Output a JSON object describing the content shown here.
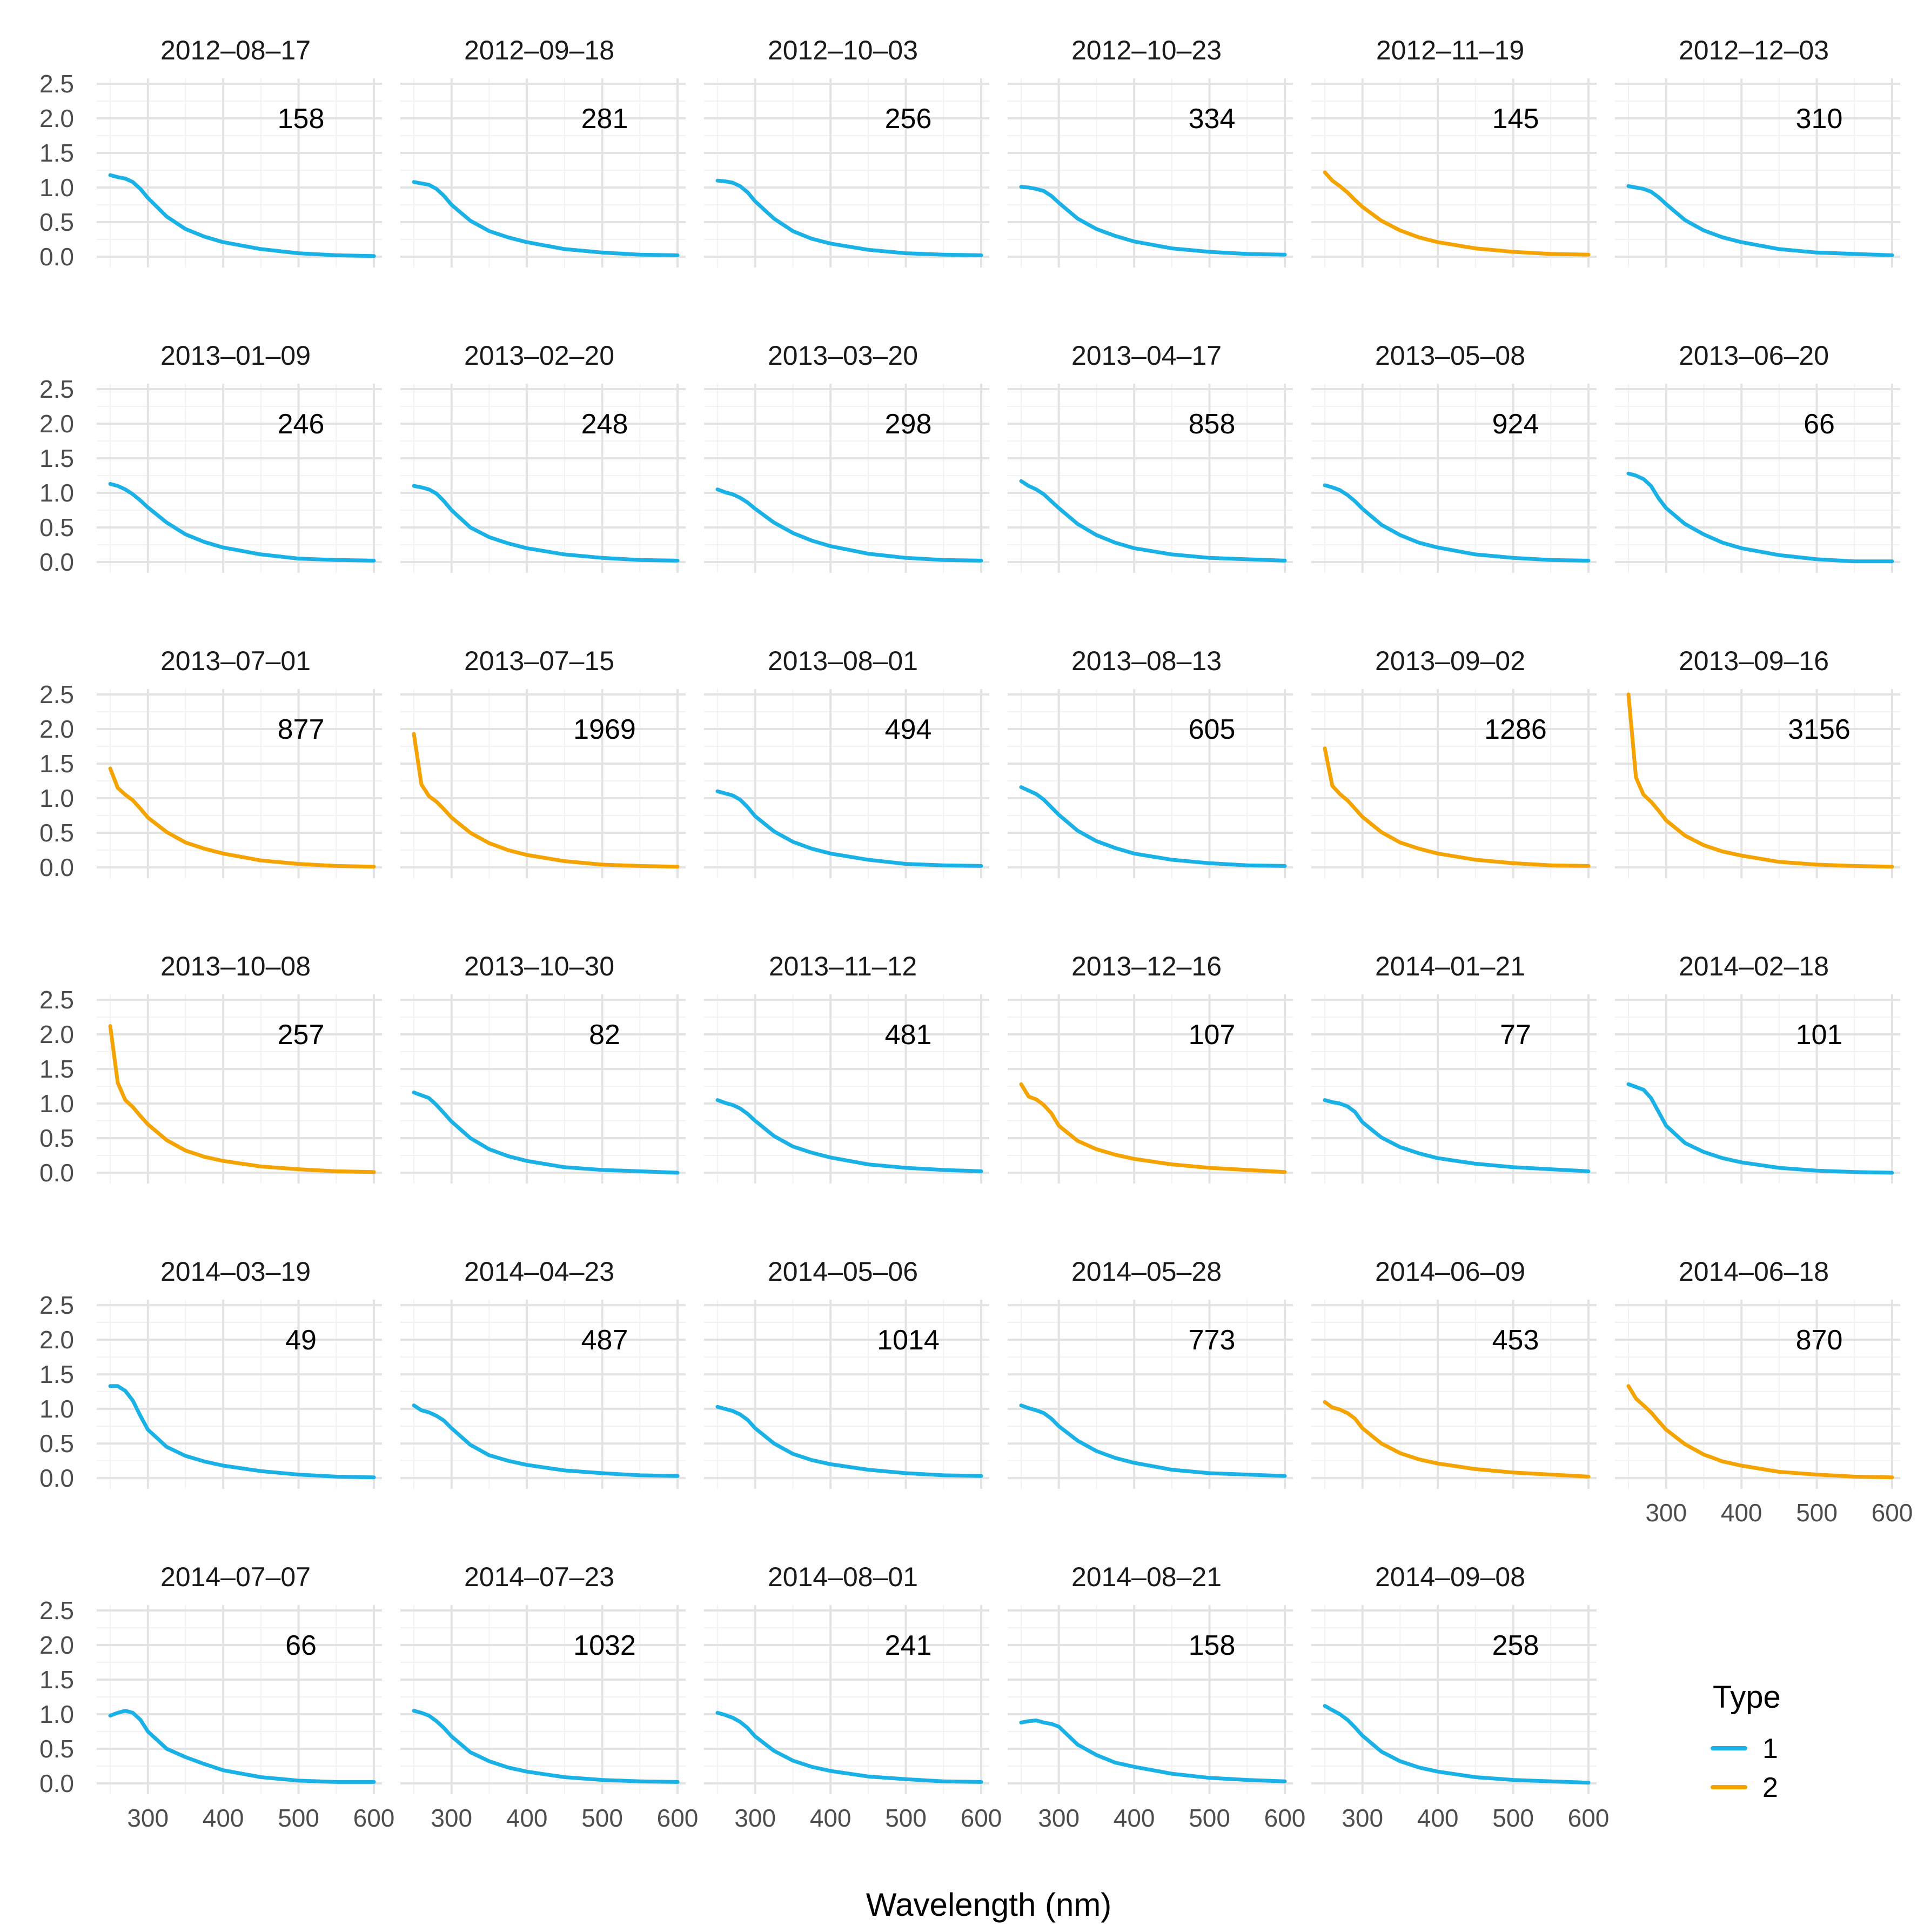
{
  "chart_data": {
    "type": "line",
    "title": "",
    "xlabel": "Wavelength (nm)",
    "ylabel": "",
    "xlim": [
      250,
      600
    ],
    "ylim": [
      0,
      2.5
    ],
    "x_ticks": [
      300,
      400,
      500,
      600
    ],
    "y_ticks": [
      0.0,
      0.5,
      1.0,
      1.5,
      2.0,
      2.5
    ],
    "y_tick_labels": [
      "0.0",
      "0.5",
      "1.0",
      "1.5",
      "2.0",
      "2.5"
    ],
    "x_tick_labels": [
      "300",
      "400",
      "500",
      "600"
    ],
    "grid": true,
    "legend": {
      "title": "Type",
      "position": "right",
      "entries": [
        {
          "label": "1",
          "color": "#1AB2E6"
        },
        {
          "label": "2",
          "color": "#F5A300"
        }
      ]
    },
    "curve_x": [
      250,
      260,
      270,
      280,
      290,
      300,
      325,
      350,
      375,
      400,
      450,
      500,
      550,
      600
    ],
    "panels": [
      {
        "date": "2012–08–17",
        "label": "158",
        "type": "1",
        "values": [
          1.18,
          1.15,
          1.13,
          1.08,
          0.98,
          0.85,
          0.58,
          0.4,
          0.29,
          0.21,
          0.11,
          0.05,
          0.02,
          0.01
        ]
      },
      {
        "date": "2012–09–18",
        "label": "281",
        "type": "1",
        "values": [
          1.08,
          1.06,
          1.04,
          0.98,
          0.88,
          0.75,
          0.52,
          0.37,
          0.28,
          0.21,
          0.11,
          0.06,
          0.03,
          0.02
        ]
      },
      {
        "date": "2012–10–03",
        "label": "256",
        "type": "1",
        "values": [
          1.1,
          1.09,
          1.07,
          1.02,
          0.93,
          0.8,
          0.55,
          0.37,
          0.26,
          0.19,
          0.1,
          0.05,
          0.03,
          0.02
        ]
      },
      {
        "date": "2012–10–23",
        "label": "334",
        "type": "1",
        "values": [
          1.01,
          1.0,
          0.98,
          0.95,
          0.88,
          0.78,
          0.55,
          0.4,
          0.3,
          0.22,
          0.12,
          0.07,
          0.04,
          0.03
        ]
      },
      {
        "date": "2012–11–19",
        "label": "145",
        "type": "2",
        "values": [
          1.22,
          1.1,
          1.02,
          0.93,
          0.82,
          0.72,
          0.52,
          0.38,
          0.28,
          0.21,
          0.12,
          0.07,
          0.04,
          0.03
        ]
      },
      {
        "date": "2012–12–03",
        "label": "310",
        "type": "1",
        "values": [
          1.02,
          1.0,
          0.98,
          0.94,
          0.86,
          0.76,
          0.53,
          0.38,
          0.28,
          0.21,
          0.11,
          0.06,
          0.04,
          0.02
        ]
      },
      {
        "date": "2013–01–09",
        "label": "246",
        "type": "1",
        "values": [
          1.13,
          1.1,
          1.05,
          0.98,
          0.89,
          0.79,
          0.57,
          0.4,
          0.29,
          0.21,
          0.11,
          0.05,
          0.03,
          0.02
        ]
      },
      {
        "date": "2013–02–20",
        "label": "248",
        "type": "1",
        "values": [
          1.1,
          1.08,
          1.05,
          0.99,
          0.88,
          0.75,
          0.5,
          0.36,
          0.27,
          0.2,
          0.11,
          0.06,
          0.03,
          0.02
        ]
      },
      {
        "date": "2013–03–20",
        "label": "298",
        "type": "1",
        "values": [
          1.05,
          1.01,
          0.98,
          0.93,
          0.86,
          0.77,
          0.57,
          0.42,
          0.31,
          0.23,
          0.12,
          0.06,
          0.03,
          0.02
        ]
      },
      {
        "date": "2013–04–17",
        "label": "858",
        "type": "1",
        "values": [
          1.17,
          1.1,
          1.05,
          0.98,
          0.88,
          0.78,
          0.55,
          0.39,
          0.28,
          0.2,
          0.11,
          0.06,
          0.04,
          0.02
        ]
      },
      {
        "date": "2013–05–08",
        "label": "924",
        "type": "1",
        "values": [
          1.11,
          1.08,
          1.04,
          0.97,
          0.88,
          0.77,
          0.54,
          0.39,
          0.28,
          0.21,
          0.11,
          0.06,
          0.03,
          0.02
        ]
      },
      {
        "date": "2013–06–20",
        "label": "66",
        "type": "1",
        "values": [
          1.28,
          1.25,
          1.2,
          1.1,
          0.92,
          0.78,
          0.55,
          0.4,
          0.28,
          0.2,
          0.1,
          0.04,
          0.01,
          0.01
        ]
      },
      {
        "date": "2013–07–01",
        "label": "877",
        "type": "2",
        "values": [
          1.43,
          1.15,
          1.05,
          0.97,
          0.85,
          0.72,
          0.51,
          0.36,
          0.27,
          0.2,
          0.1,
          0.05,
          0.02,
          0.01
        ]
      },
      {
        "date": "2013–07–15",
        "label": "1969",
        "type": "2",
        "values": [
          1.93,
          1.2,
          1.03,
          0.95,
          0.84,
          0.72,
          0.5,
          0.35,
          0.25,
          0.18,
          0.09,
          0.04,
          0.02,
          0.01
        ]
      },
      {
        "date": "2013–08–01",
        "label": "494",
        "type": "1",
        "values": [
          1.1,
          1.07,
          1.04,
          0.98,
          0.87,
          0.74,
          0.52,
          0.37,
          0.27,
          0.2,
          0.11,
          0.05,
          0.03,
          0.02
        ]
      },
      {
        "date": "2013–08–13",
        "label": "605",
        "type": "1",
        "values": [
          1.16,
          1.11,
          1.06,
          0.98,
          0.87,
          0.76,
          0.53,
          0.38,
          0.28,
          0.2,
          0.11,
          0.06,
          0.03,
          0.02
        ]
      },
      {
        "date": "2013–09–02",
        "label": "1286",
        "type": "2",
        "values": [
          1.72,
          1.18,
          1.06,
          0.97,
          0.85,
          0.73,
          0.51,
          0.36,
          0.27,
          0.2,
          0.11,
          0.06,
          0.03,
          0.02
        ]
      },
      {
        "date": "2013–09–16",
        "label": "3156",
        "type": "2",
        "values": [
          2.5,
          1.3,
          1.05,
          0.95,
          0.82,
          0.68,
          0.46,
          0.32,
          0.23,
          0.17,
          0.08,
          0.04,
          0.02,
          0.01
        ]
      },
      {
        "date": "2013–10–08",
        "label": "257",
        "type": "2",
        "values": [
          2.12,
          1.3,
          1.05,
          0.95,
          0.82,
          0.7,
          0.47,
          0.32,
          0.23,
          0.17,
          0.09,
          0.05,
          0.02,
          0.01
        ]
      },
      {
        "date": "2013–10–30",
        "label": "82",
        "type": "1",
        "values": [
          1.16,
          1.12,
          1.08,
          0.98,
          0.86,
          0.74,
          0.5,
          0.34,
          0.24,
          0.17,
          0.08,
          0.04,
          0.02,
          0.0
        ]
      },
      {
        "date": "2013–11–12",
        "label": "481",
        "type": "1",
        "values": [
          1.05,
          1.01,
          0.98,
          0.93,
          0.85,
          0.75,
          0.53,
          0.38,
          0.29,
          0.22,
          0.12,
          0.07,
          0.04,
          0.02
        ]
      },
      {
        "date": "2013–12–16",
        "label": "107",
        "type": "2",
        "values": [
          1.28,
          1.1,
          1.06,
          0.98,
          0.86,
          0.68,
          0.46,
          0.34,
          0.26,
          0.2,
          0.12,
          0.07,
          0.04,
          0.01
        ]
      },
      {
        "date": "2014–01–21",
        "label": "77",
        "type": "1",
        "values": [
          1.05,
          1.02,
          1.0,
          0.96,
          0.88,
          0.73,
          0.51,
          0.37,
          0.28,
          0.21,
          0.13,
          0.08,
          0.05,
          0.02
        ]
      },
      {
        "date": "2014–02–18",
        "label": "101",
        "type": "1",
        "values": [
          1.28,
          1.24,
          1.2,
          1.08,
          0.88,
          0.68,
          0.43,
          0.3,
          0.21,
          0.15,
          0.07,
          0.03,
          0.01,
          0.0
        ]
      },
      {
        "date": "2014–03–19",
        "label": "49",
        "type": "1",
        "values": [
          1.33,
          1.33,
          1.26,
          1.12,
          0.9,
          0.7,
          0.45,
          0.32,
          0.24,
          0.18,
          0.1,
          0.05,
          0.02,
          0.01
        ]
      },
      {
        "date": "2014–04–23",
        "label": "487",
        "type": "1",
        "values": [
          1.05,
          0.98,
          0.95,
          0.9,
          0.83,
          0.72,
          0.48,
          0.33,
          0.25,
          0.19,
          0.11,
          0.07,
          0.04,
          0.03
        ]
      },
      {
        "date": "2014–05–06",
        "label": "1014",
        "type": "1",
        "values": [
          1.03,
          1.0,
          0.97,
          0.92,
          0.84,
          0.72,
          0.5,
          0.35,
          0.26,
          0.2,
          0.12,
          0.07,
          0.04,
          0.03
        ]
      },
      {
        "date": "2014–05–28",
        "label": "773",
        "type": "1",
        "values": [
          1.05,
          1.01,
          0.98,
          0.94,
          0.86,
          0.75,
          0.54,
          0.39,
          0.29,
          0.22,
          0.12,
          0.07,
          0.05,
          0.03
        ]
      },
      {
        "date": "2014–06–09",
        "label": "453",
        "type": "2",
        "values": [
          1.1,
          1.02,
          0.99,
          0.94,
          0.86,
          0.72,
          0.5,
          0.36,
          0.27,
          0.21,
          0.13,
          0.08,
          0.05,
          0.02
        ]
      },
      {
        "date": "2014–06–18",
        "label": "870",
        "type": "2",
        "values": [
          1.33,
          1.15,
          1.05,
          0.95,
          0.82,
          0.7,
          0.49,
          0.34,
          0.24,
          0.18,
          0.09,
          0.05,
          0.02,
          0.01
        ]
      },
      {
        "date": "2014–07–07",
        "label": "66",
        "type": "1",
        "values": [
          0.98,
          1.02,
          1.05,
          1.02,
          0.92,
          0.75,
          0.5,
          0.38,
          0.28,
          0.19,
          0.09,
          0.04,
          0.02,
          0.02
        ]
      },
      {
        "date": "2014–07–23",
        "label": "1032",
        "type": "1",
        "values": [
          1.05,
          1.02,
          0.98,
          0.9,
          0.8,
          0.68,
          0.45,
          0.32,
          0.23,
          0.17,
          0.09,
          0.05,
          0.03,
          0.02
        ]
      },
      {
        "date": "2014–08–01",
        "label": "241",
        "type": "1",
        "values": [
          1.02,
          0.99,
          0.95,
          0.89,
          0.8,
          0.68,
          0.47,
          0.33,
          0.24,
          0.18,
          0.1,
          0.06,
          0.03,
          0.02
        ]
      },
      {
        "date": "2014–08–21",
        "label": "158",
        "type": "1",
        "values": [
          0.88,
          0.9,
          0.91,
          0.88,
          0.86,
          0.82,
          0.56,
          0.41,
          0.3,
          0.24,
          0.14,
          0.08,
          0.05,
          0.03
        ]
      },
      {
        "date": "2014–09–08",
        "label": "258",
        "type": "1",
        "values": [
          1.12,
          1.06,
          1.0,
          0.92,
          0.81,
          0.69,
          0.46,
          0.32,
          0.23,
          0.17,
          0.09,
          0.05,
          0.03,
          0.01
        ]
      }
    ]
  }
}
